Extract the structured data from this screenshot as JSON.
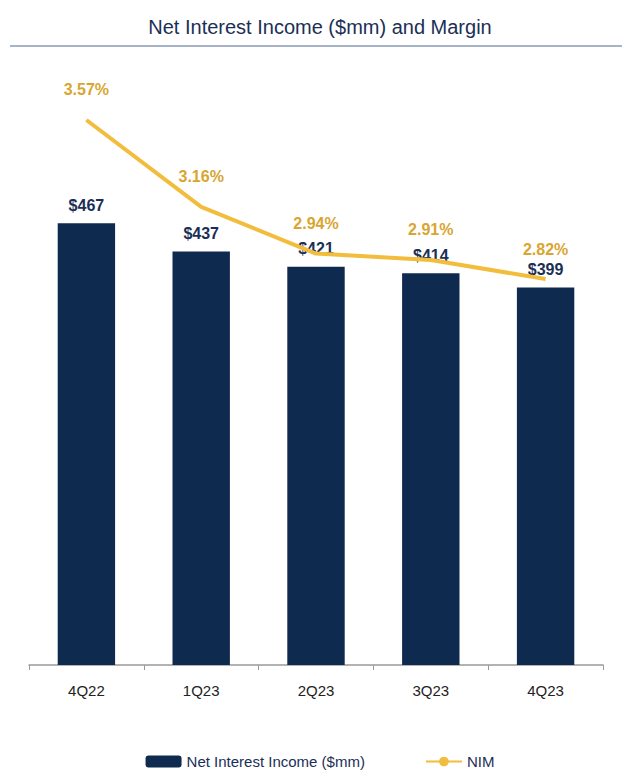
{
  "chart_data": {
    "type": "bar",
    "title": "Net Interest Income ($mm) and Margin",
    "categories": [
      "4Q22",
      "1Q23",
      "2Q23",
      "3Q23",
      "4Q23"
    ],
    "series": [
      {
        "name": "Net Interest Income ($mm)",
        "type": "bar",
        "color": "#0e2a4f",
        "values": [
          467,
          437,
          421,
          414,
          399
        ],
        "value_labels": [
          "$467",
          "$437",
          "$421",
          "$414",
          "$399"
        ]
      },
      {
        "name": "NIM",
        "type": "line",
        "axis": "y2",
        "color": "#f2bd3c",
        "values": [
          3.57,
          3.16,
          2.94,
          2.91,
          2.82
        ],
        "value_labels": [
          "3.57%",
          "3.16%",
          "2.94%",
          "2.91%",
          "2.82%"
        ]
      }
    ],
    "ylim": [
      0,
      650
    ],
    "yticks": [
      0,
      650
    ],
    "y2lim": [
      1.0,
      3.9
    ],
    "y2ticks": [
      1.0,
      3.9
    ],
    "grid": false,
    "legend": "bottom",
    "data_labels": true,
    "tick_labels": "x"
  }
}
